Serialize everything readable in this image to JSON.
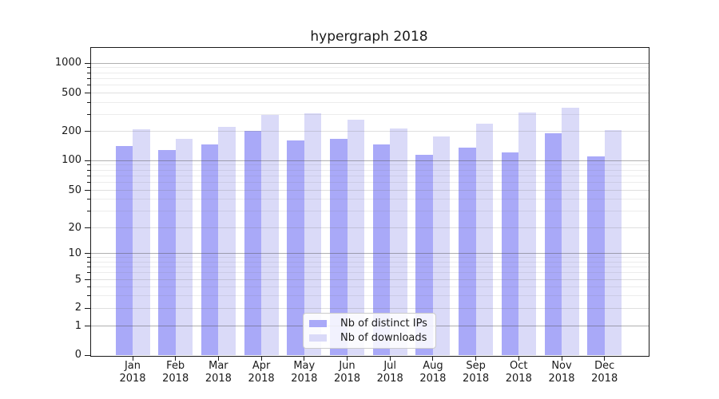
{
  "chart_data": {
    "type": "bar",
    "title": "hypergraph 2018",
    "categories": [
      "Jan 2018",
      "Feb 2018",
      "Mar 2018",
      "Apr 2018",
      "May 2018",
      "Jun 2018",
      "Jul 2018",
      "Aug 2018",
      "Sep 2018",
      "Oct 2018",
      "Nov 2018",
      "Dec 2018"
    ],
    "series": [
      {
        "name": "Nb of distinct IPs",
        "color": "#a9a9f8",
        "values": [
          140,
          129,
          146,
          202,
          160,
          167,
          146,
          115,
          136,
          122,
          189,
          111
        ]
      },
      {
        "name": "Nb of downloads",
        "color": "#dadaf8",
        "values": [
          210,
          168,
          221,
          298,
          305,
          263,
          215,
          177,
          239,
          316,
          350,
          207
        ]
      }
    ],
    "y_axis": {
      "scale": "symlog",
      "tick_values": [
        0,
        1,
        2,
        5,
        10,
        20,
        50,
        100,
        200,
        500,
        1000
      ],
      "tick_labels": [
        "0",
        "1",
        "2",
        "5",
        "10",
        "20",
        "50",
        "100",
        "200",
        "500",
        "1000"
      ],
      "major_gridline_values": [
        1,
        10,
        100,
        1000
      ]
    },
    "x_axis": {
      "tick_label_months": [
        "Jan",
        "Feb",
        "Mar",
        "Apr",
        "May",
        "Jun",
        "Jul",
        "Aug",
        "Sep",
        "Oct",
        "Nov",
        "Dec"
      ],
      "tick_label_year": "2018"
    },
    "legend": {
      "position": "lower center",
      "entries": [
        "Nb of distinct IPs",
        "Nb of downloads"
      ]
    },
    "grid": true
  },
  "colors": {
    "bar_distinct_ips": "#a9a9f8",
    "bar_downloads": "#dadaf8",
    "axis": "#1a1a1a"
  }
}
